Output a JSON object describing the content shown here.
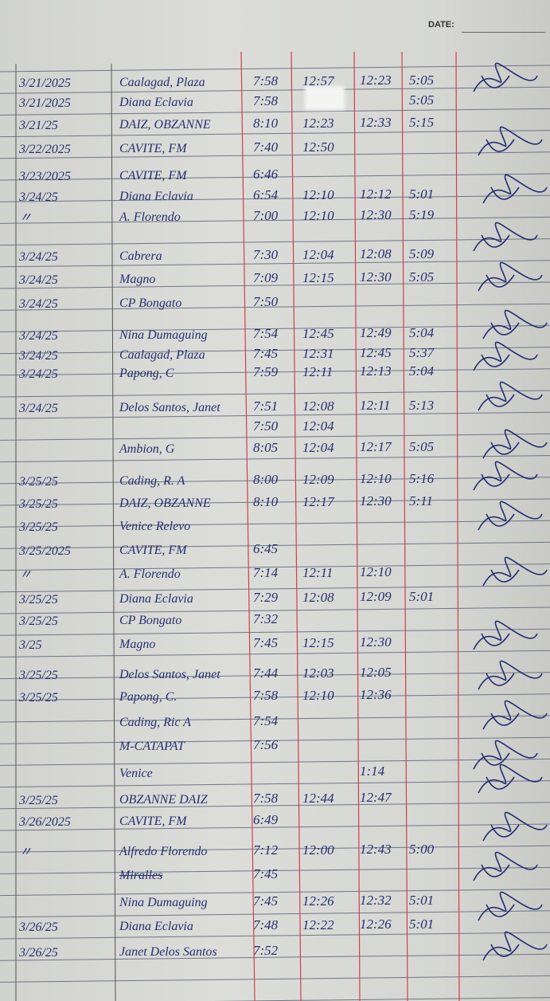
{
  "header": {
    "date_label": "DATE:"
  },
  "columns": [
    "date",
    "name",
    "am_in",
    "am_out",
    "pm_in",
    "pm_out",
    "signature"
  ],
  "ink_color": "#263071",
  "margin_line_color": "#d0404a",
  "rows": [
    {
      "date": "3/21/2025",
      "name": "Caalagad, Plaza",
      "am_in": "7:58",
      "am_out": "12:57",
      "pm_in": "12:23",
      "pm_out": "5:05"
    },
    {
      "date": "3/21/2025",
      "name": "Diana Eclavia",
      "am_in": "7:58",
      "am_out": "",
      "pm_in": "",
      "pm_out": "5:05"
    },
    {
      "date": "3/21/25",
      "name": "DAIZ, OBZANNE",
      "am_in": "8:10",
      "am_out": "12:23",
      "pm_in": "12:33",
      "pm_out": "5:15"
    },
    {
      "date": "3/22/2025",
      "name": "CAVITE, FM",
      "am_in": "7:40",
      "am_out": "12:50",
      "pm_in": "",
      "pm_out": ""
    },
    {
      "date": "3/23/2025",
      "name": "CAVITE, FM",
      "am_in": "6:46",
      "am_out": "",
      "pm_in": "",
      "pm_out": ""
    },
    {
      "date": "3/24/25",
      "name": "Diana Eclavia",
      "am_in": "6:54",
      "am_out": "12:10",
      "pm_in": "12:12",
      "pm_out": "5:01"
    },
    {
      "date": "〃",
      "name": "A. Florendo",
      "am_in": "7:00",
      "am_out": "12:10",
      "pm_in": "12:30",
      "pm_out": "5:19"
    },
    {
      "date": "3/24/25",
      "name": "Cabrera",
      "am_in": "7:30",
      "am_out": "12:04",
      "pm_in": "12:08",
      "pm_out": "5:09"
    },
    {
      "date": "3/24/25",
      "name": "Magno",
      "am_in": "7:09",
      "am_out": "12:15",
      "pm_in": "12:30",
      "pm_out": "5:05"
    },
    {
      "date": "3/24/25",
      "name": "CP Bongato",
      "am_in": "7:50",
      "am_out": "",
      "pm_in": "",
      "pm_out": ""
    },
    {
      "date": "3/24/25",
      "name": "Nina Dumaguing",
      "am_in": "7:54",
      "am_out": "12:45",
      "pm_in": "12:49",
      "pm_out": "5:04"
    },
    {
      "date": "3/24/25",
      "name": "Caalagad, Plaza",
      "am_in": "7:45",
      "am_out": "12:31",
      "pm_in": "12:45",
      "pm_out": "5:37"
    },
    {
      "date": "3/24/25",
      "name": "Papong, C",
      "am_in": "7:59",
      "am_out": "12:11",
      "pm_in": "12:13",
      "pm_out": "5:04"
    },
    {
      "date": "3/24/25",
      "name": "Delos Santos, Janet",
      "am_in": "7:51",
      "am_out": "12:08",
      "pm_in": "12:11",
      "pm_out": "5:13"
    },
    {
      "date": "",
      "name": "",
      "am_in": "7:50",
      "am_out": "12:04",
      "pm_in": "",
      "pm_out": ""
    },
    {
      "date": "",
      "name": "Ambion, G",
      "am_in": "8:05",
      "am_out": "12:04",
      "pm_in": "12:17",
      "pm_out": "5:05"
    },
    {
      "date": "3/25/25",
      "name": "Cading, R. A",
      "am_in": "8:00",
      "am_out": "12:09",
      "pm_in": "12:10",
      "pm_out": "5:16"
    },
    {
      "date": "3/25/25",
      "name": "DAIZ, OBZANNE",
      "am_in": "8:10",
      "am_out": "12:17",
      "pm_in": "12:30",
      "pm_out": "5:11"
    },
    {
      "date": "3/25/25",
      "name": "Venice Relevo",
      "am_in": "",
      "am_out": "",
      "pm_in": "",
      "pm_out": ""
    },
    {
      "date": "3/25/2025",
      "name": "CAVITE, FM",
      "am_in": "6:45",
      "am_out": "",
      "pm_in": "",
      "pm_out": ""
    },
    {
      "date": "〃",
      "name": "A. Florendo",
      "am_in": "7:14",
      "am_out": "12:11",
      "pm_in": "12:10",
      "pm_out": ""
    },
    {
      "date": "3/25/25",
      "name": "Diana Eclavia",
      "am_in": "7:29",
      "am_out": "12:08",
      "pm_in": "12:09",
      "pm_out": "5:01"
    },
    {
      "date": "3/25/25",
      "name": "CP Bongato",
      "am_in": "7:32",
      "am_out": "",
      "pm_in": "",
      "pm_out": ""
    },
    {
      "date": "3/25",
      "name": "Magno",
      "am_in": "7:45",
      "am_out": "12:15",
      "pm_in": "12:30",
      "pm_out": ""
    },
    {
      "date": "3/25/25",
      "name": "Delos Santos, Janet",
      "am_in": "7:44",
      "am_out": "12:03",
      "pm_in": "12:05",
      "pm_out": ""
    },
    {
      "date": "3/25/25",
      "name": "Papong, C.",
      "am_in": "7:58",
      "am_out": "12:10",
      "pm_in": "12:36",
      "pm_out": ""
    },
    {
      "date": "",
      "name": "Cading, Ric A",
      "am_in": "7:54",
      "am_out": "",
      "pm_in": "",
      "pm_out": ""
    },
    {
      "date": "",
      "name": "M-CATAPAT",
      "am_in": "7:56",
      "am_out": "",
      "pm_in": "",
      "pm_out": ""
    },
    {
      "date": "",
      "name": "Venice",
      "am_in": "",
      "am_out": "",
      "pm_in": "1:14",
      "pm_out": ""
    },
    {
      "date": "3/25/25",
      "name": "OBZANNE DAIZ",
      "am_in": "7:58",
      "am_out": "12:44",
      "pm_in": "12:47",
      "pm_out": ""
    },
    {
      "date": "3/26/2025",
      "name": "CAVITE, FM",
      "am_in": "6:49",
      "am_out": "",
      "pm_in": "",
      "pm_out": ""
    },
    {
      "date": "〃",
      "name": "Alfredo Florendo",
      "am_in": "7:12",
      "am_out": "12:00",
      "pm_in": "12:43",
      "pm_out": "5:00"
    },
    {
      "date": "",
      "name": "Miralles",
      "am_in": "7:45",
      "am_out": "",
      "pm_in": "",
      "pm_out": "",
      "struck": true
    },
    {
      "date": "",
      "name": "Nina Dumaguing",
      "am_in": "7:45",
      "am_out": "12:26",
      "pm_in": "12:32",
      "pm_out": "5:01"
    },
    {
      "date": "3/26/25",
      "name": "Diana Eclavia",
      "am_in": "7:48",
      "am_out": "12:22",
      "pm_in": "12:26",
      "pm_out": "5:01"
    },
    {
      "date": "3/26/25",
      "name": "Janet Delos Santos",
      "am_in": "7:52",
      "am_out": "",
      "pm_in": "",
      "pm_out": ""
    }
  ]
}
